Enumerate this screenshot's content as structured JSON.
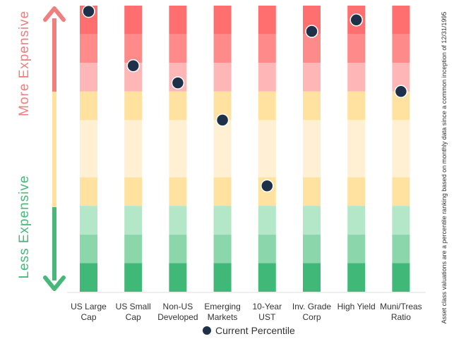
{
  "chart_data": {
    "type": "heatmap",
    "categories": [
      [
        "US Large",
        "Cap"
      ],
      [
        "US Small",
        "Cap"
      ],
      [
        "Non-US",
        "Developed"
      ],
      [
        "Emerging",
        "Markets"
      ],
      [
        "10-Year",
        "UST"
      ],
      [
        "Inv. Grade",
        "Corp"
      ],
      [
        "High Yield",
        ""
      ],
      [
        "Muni/Treas",
        "Ratio"
      ]
    ],
    "ylim": [
      0,
      100
    ],
    "bands": [
      {
        "from": 90,
        "to": 100,
        "color": "#ff6f6f"
      },
      {
        "from": 80,
        "to": 90,
        "color": "#ff8a8a"
      },
      {
        "from": 70,
        "to": 80,
        "color": "#ffb6b6"
      },
      {
        "from": 60,
        "to": 70,
        "color": "#ffe29f"
      },
      {
        "from": 40,
        "to": 60,
        "color": "#ffefd3"
      },
      {
        "from": 30,
        "to": 40,
        "color": "#ffe29f"
      },
      {
        "from": 20,
        "to": 30,
        "color": "#b4e6c8"
      },
      {
        "from": 10,
        "to": 20,
        "color": "#8bd6aa"
      },
      {
        "from": 0,
        "to": 10,
        "color": "#40b877"
      }
    ],
    "series": [
      {
        "name": "Current Percentile",
        "values": [
          98,
          79,
          73,
          60,
          37,
          91,
          95,
          70
        ]
      }
    ],
    "marker_color": "#1f3148"
  },
  "legend": {
    "label": "Current Percentile"
  },
  "axis": {
    "top_label": "More Expensive",
    "bottom_label": "Less Expensive",
    "top_color": "#f07f7f",
    "mid_color": "#fde39b",
    "bottom_color": "#48b87a"
  },
  "footnote": "Asset class valuations are a percentile ranking based on monthly data since a common inception of 12/31/1995"
}
